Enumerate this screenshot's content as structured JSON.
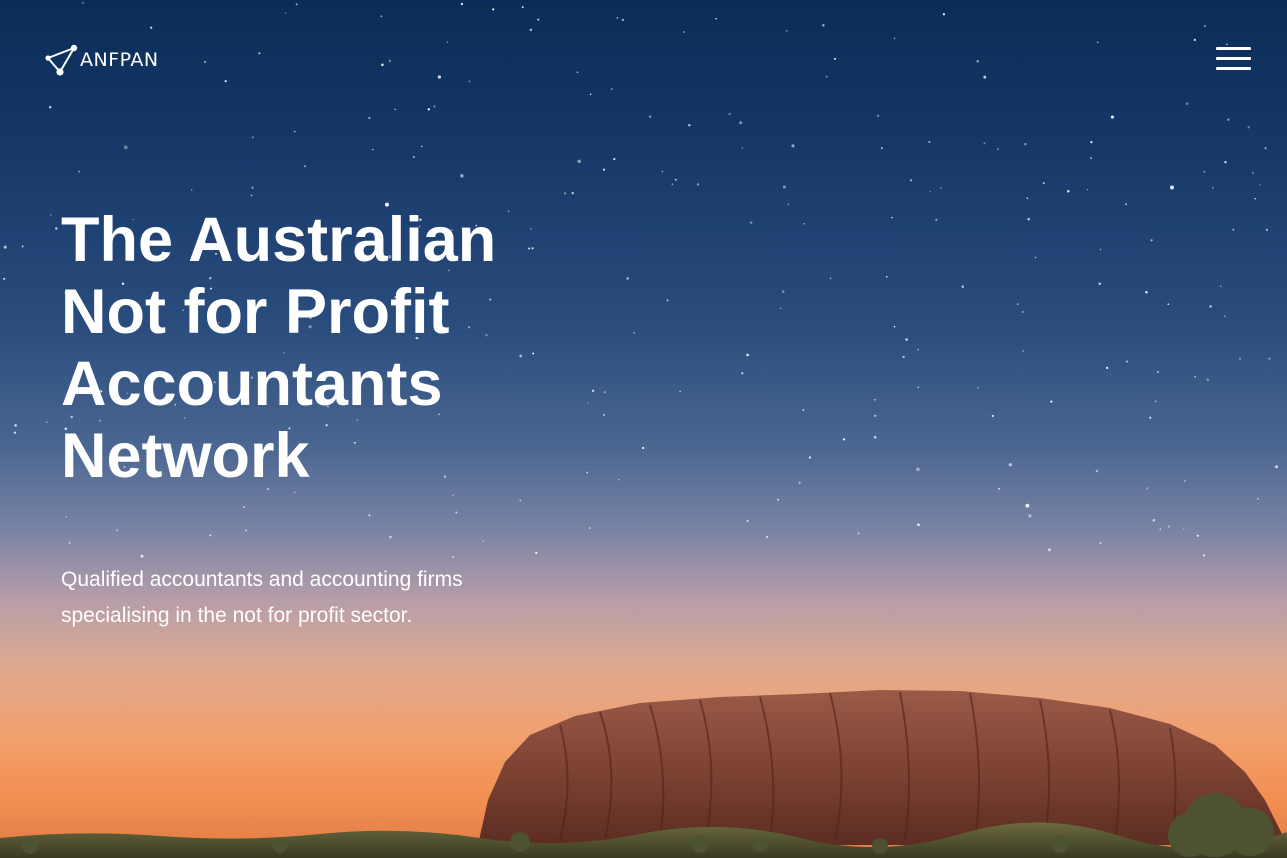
{
  "brand": {
    "logo_text": "ANFPAN",
    "logo_icon": "network-nodes-icon"
  },
  "header": {
    "menu_icon": "hamburger-menu-icon"
  },
  "hero": {
    "headline": "The Australian Not for Profit Accountants Network",
    "subheading": "Qualified accountants and accounting firms specialising in the not for profit sector.",
    "background_image": "uluru-night-sky-photo"
  },
  "colors": {
    "text": "#ffffff",
    "sky_top": "#0b2c57",
    "sky_horizon": "#f28f52",
    "rock": "#8a4a38"
  }
}
